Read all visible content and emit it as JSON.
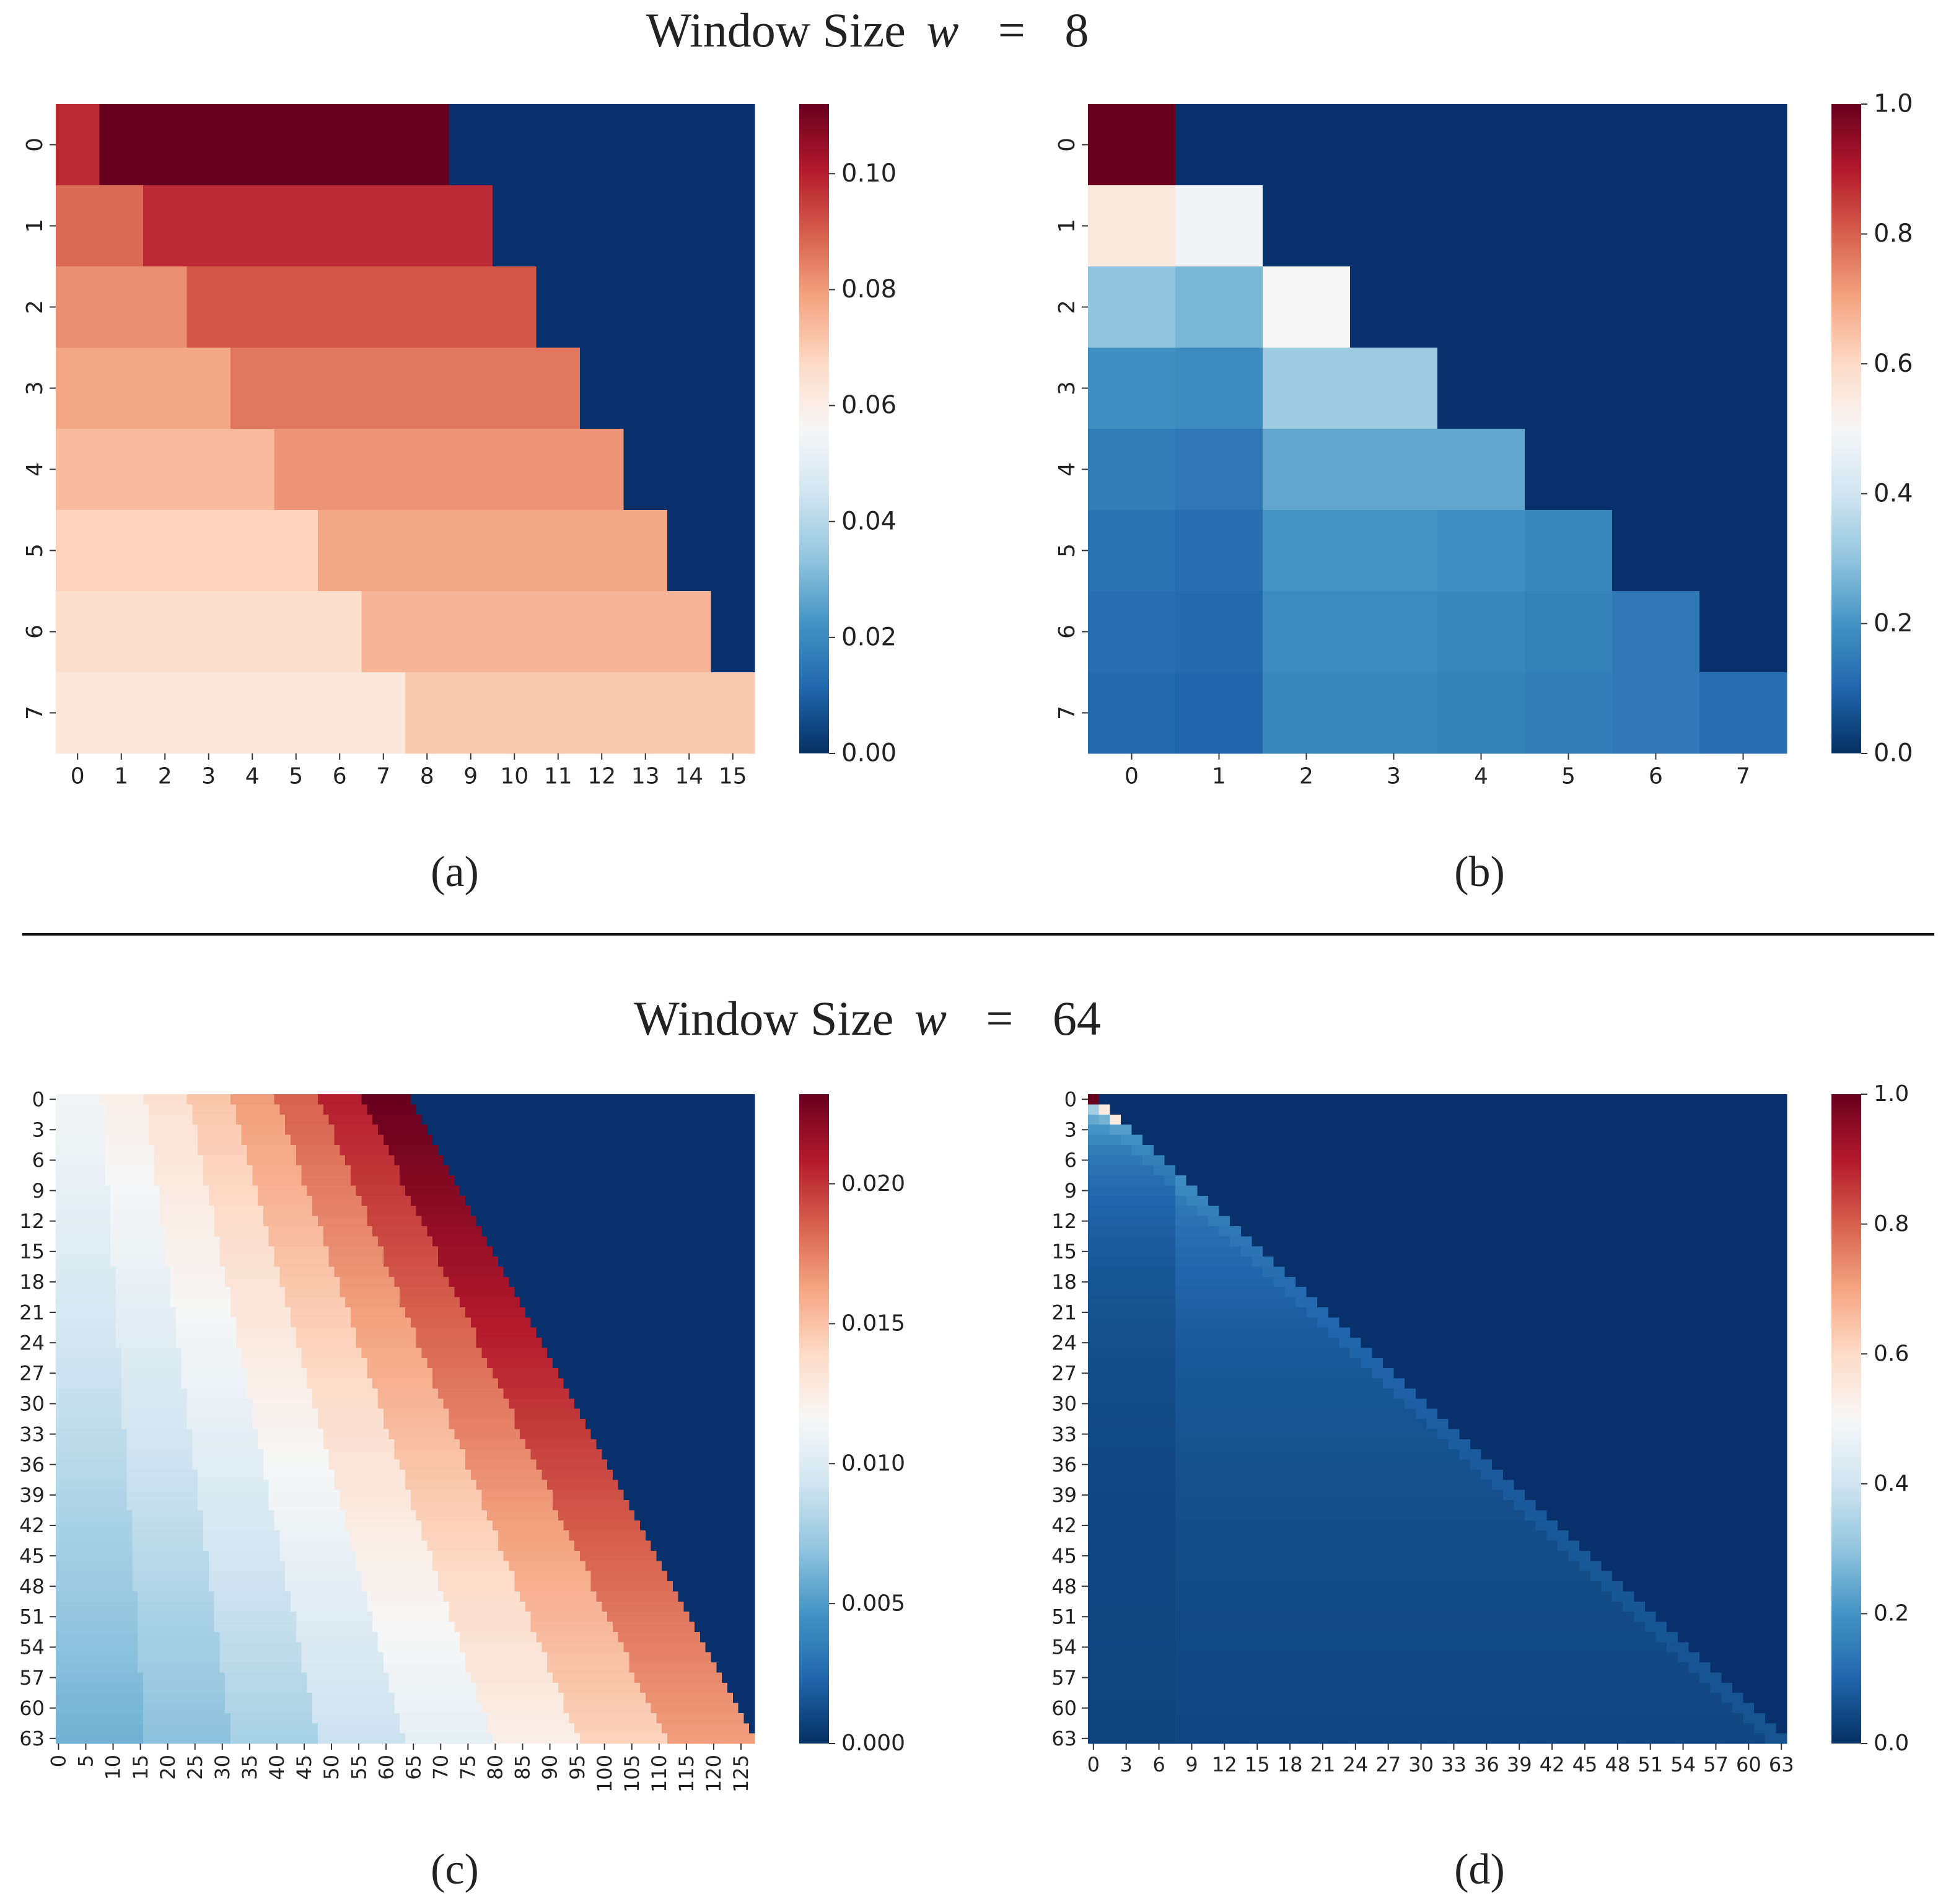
{
  "headings": {
    "top": {
      "prefix": "Window Size",
      "var": "w",
      "eq": "=",
      "value": "8"
    },
    "bottom": {
      "prefix": "Window Size",
      "var": "w",
      "eq": "=",
      "value": "64"
    }
  },
  "captions": {
    "a": "(a)",
    "b": "(b)",
    "c": "(c)",
    "d": "(d)"
  },
  "colors": {
    "scale": [
      "#053061",
      "#2166ac",
      "#4393c3",
      "#92c5de",
      "#d1e5f0",
      "#f7f7f7",
      "#fddbc7",
      "#f4a582",
      "#d6604d",
      "#b2182b",
      "#67001f"
    ],
    "masked": "#08306b"
  },
  "chart_data": [
    {
      "id": "a",
      "type": "heatmap",
      "rows": 8,
      "cols": 16,
      "x_ticks": [
        "0",
        "1",
        "2",
        "3",
        "4",
        "5",
        "6",
        "7",
        "8",
        "9",
        "10",
        "11",
        "12",
        "13",
        "14",
        "15"
      ],
      "y_ticks": [
        "0",
        "1",
        "2",
        "3",
        "4",
        "5",
        "6",
        "7"
      ],
      "colorbar": {
        "min": 0.0,
        "max": 0.112,
        "ticks": [
          "0.00",
          "0.02",
          "0.04",
          "0.06",
          "0.08",
          "0.10"
        ],
        "tick_values": [
          0,
          0.02,
          0.04,
          0.06,
          0.08,
          0.1
        ]
      },
      "values": [
        [
          0.098,
          0.112,
          0.112,
          0.112,
          0.112,
          0.112,
          0.112,
          0.112,
          0.112,
          0,
          0,
          0,
          0,
          0,
          0,
          0
        ],
        [
          0.088,
          0.088,
          0.098,
          0.098,
          0.098,
          0.098,
          0.098,
          0.098,
          0.098,
          0.098,
          0,
          0,
          0,
          0,
          0,
          0
        ],
        [
          0.082,
          0.082,
          0.082,
          0.091,
          0.091,
          0.091,
          0.091,
          0.091,
          0.091,
          0.091,
          0.091,
          0,
          0,
          0,
          0,
          0
        ],
        [
          0.078,
          0.078,
          0.078,
          0.078,
          0.086,
          0.086,
          0.086,
          0.086,
          0.086,
          0.086,
          0.086,
          0.086,
          0,
          0,
          0,
          0
        ],
        [
          0.074,
          0.074,
          0.074,
          0.074,
          0.074,
          0.081,
          0.081,
          0.081,
          0.081,
          0.081,
          0.081,
          0.081,
          0.081,
          0,
          0,
          0
        ],
        [
          0.069,
          0.069,
          0.069,
          0.069,
          0.069,
          0.069,
          0.078,
          0.078,
          0.078,
          0.078,
          0.078,
          0.078,
          0.078,
          0.078,
          0,
          0
        ],
        [
          0.066,
          0.066,
          0.066,
          0.066,
          0.066,
          0.066,
          0.066,
          0.075,
          0.075,
          0.075,
          0.075,
          0.075,
          0.075,
          0.075,
          0.075,
          0
        ],
        [
          0.062,
          0.062,
          0.062,
          0.062,
          0.062,
          0.062,
          0.062,
          0.062,
          0.071,
          0.071,
          0.071,
          0.071,
          0.071,
          0.071,
          0.071,
          0.071
        ]
      ]
    },
    {
      "id": "b",
      "type": "heatmap",
      "rows": 8,
      "cols": 8,
      "x_ticks": [
        "0",
        "1",
        "2",
        "3",
        "4",
        "5",
        "6",
        "7"
      ],
      "y_ticks": [
        "0",
        "1",
        "2",
        "3",
        "4",
        "5",
        "6",
        "7"
      ],
      "colorbar": {
        "min": 0.0,
        "max": 1.0,
        "ticks": [
          "0.0",
          "0.2",
          "0.4",
          "0.6",
          "0.8",
          "1.0"
        ],
        "tick_values": [
          0,
          0.2,
          0.4,
          0.6,
          0.8,
          1.0
        ]
      },
      "values": [
        [
          1.0,
          0,
          0,
          0,
          0,
          0,
          0,
          0
        ],
        [
          0.55,
          0.48,
          0,
          0,
          0,
          0,
          0,
          0
        ],
        [
          0.3,
          0.27,
          0.5,
          0,
          0,
          0,
          0,
          0
        ],
        [
          0.19,
          0.18,
          0.32,
          0.32,
          0,
          0,
          0,
          0
        ],
        [
          0.15,
          0.14,
          0.24,
          0.24,
          0.24,
          0,
          0,
          0
        ],
        [
          0.13,
          0.12,
          0.2,
          0.2,
          0.19,
          0.17,
          0,
          0
        ],
        [
          0.12,
          0.11,
          0.18,
          0.18,
          0.17,
          0.16,
          0.14,
          0
        ],
        [
          0.11,
          0.1,
          0.17,
          0.17,
          0.16,
          0.15,
          0.14,
          0.12
        ]
      ]
    },
    {
      "id": "c",
      "type": "heatmap",
      "rows": 64,
      "cols": 128,
      "x_ticks": [
        "0",
        "5",
        "10",
        "15",
        "20",
        "25",
        "30",
        "35",
        "40",
        "45",
        "50",
        "55",
        "60",
        "65",
        "70",
        "75",
        "80",
        "85",
        "90",
        "95",
        "100",
        "105",
        "110",
        "115",
        "120",
        "125"
      ],
      "x_tick_step": 5,
      "y_ticks": [
        "0",
        "3",
        "6",
        "9",
        "12",
        "15",
        "18",
        "21",
        "24",
        "27",
        "30",
        "33",
        "36",
        "39",
        "42",
        "45",
        "48",
        "51",
        "54",
        "57",
        "60",
        "63"
      ],
      "y_tick_step": 3,
      "colorbar": {
        "min": 0.0,
        "max": 0.0232,
        "ticks": [
          "0.000",
          "0.005",
          "0.010",
          "0.015",
          "0.020"
        ],
        "tick_values": [
          0,
          0.005,
          0.01,
          0.015,
          0.02
        ]
      },
      "pattern": "banded lower-triangular: row r is non-zero for columns 0..r+64; values rise from about 0.011 (row 0) / 0.0055 (row 63) at the left edge to about 0.0232 / 0.0165 at the right edge, in 8-column bands",
      "value_range": [
        0.0055,
        0.0232
      ]
    },
    {
      "id": "d",
      "type": "heatmap",
      "rows": 64,
      "cols": 64,
      "x_ticks": [
        "0",
        "3",
        "6",
        "9",
        "12",
        "15",
        "18",
        "21",
        "24",
        "27",
        "30",
        "33",
        "36",
        "39",
        "42",
        "45",
        "48",
        "51",
        "54",
        "57",
        "60",
        "63"
      ],
      "x_tick_step": 3,
      "y_ticks": [
        "0",
        "3",
        "6",
        "9",
        "12",
        "15",
        "18",
        "21",
        "24",
        "27",
        "30",
        "33",
        "36",
        "39",
        "42",
        "45",
        "48",
        "51",
        "54",
        "57",
        "60",
        "63"
      ],
      "y_tick_step": 3,
      "colorbar": {
        "min": 0.0,
        "max": 1.0,
        "ticks": [
          "0.0",
          "0.2",
          "0.4",
          "0.6",
          "0.8",
          "1.0"
        ],
        "tick_values": [
          0,
          0.2,
          0.4,
          0.6,
          0.8,
          1.0
        ]
      },
      "pattern": "lower-triangular (column <= row); cell (0,0) = 1.0, rows 1-2 about 0.5, values then decay to about 0.03-0.12, with bands every 8 columns",
      "value_range": [
        0.0,
        1.0
      ]
    }
  ]
}
